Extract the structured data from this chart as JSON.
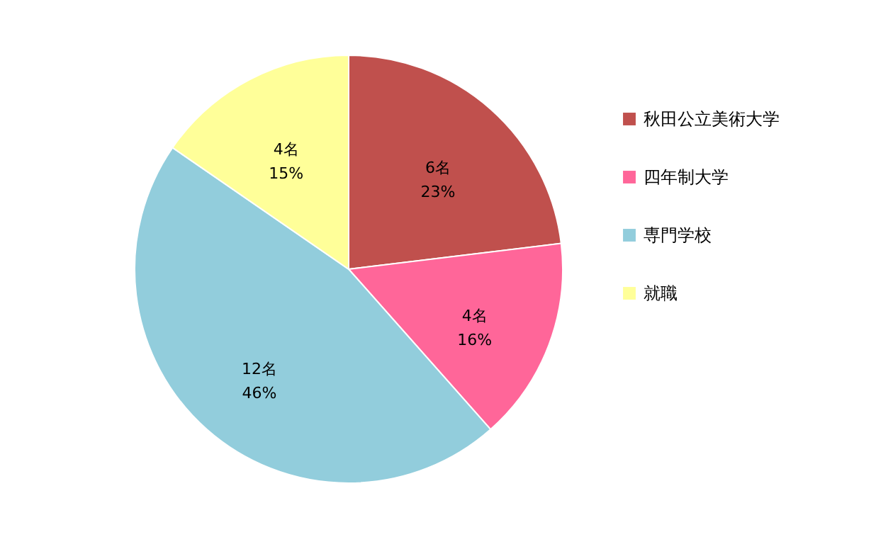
{
  "chart_data": {
    "type": "pie",
    "categories": [
      "秋田公立美術大学",
      "四年制大学",
      "専門学校",
      "就職"
    ],
    "values": [
      6,
      4,
      12,
      4
    ],
    "colors": [
      "#c0504d",
      "#ff6699",
      "#92cddc",
      "#ffff99"
    ],
    "value_labels": [
      "6名\n23%",
      "4名\n16%",
      "12名\n46%",
      "4名\n15%"
    ],
    "legend": "right"
  }
}
